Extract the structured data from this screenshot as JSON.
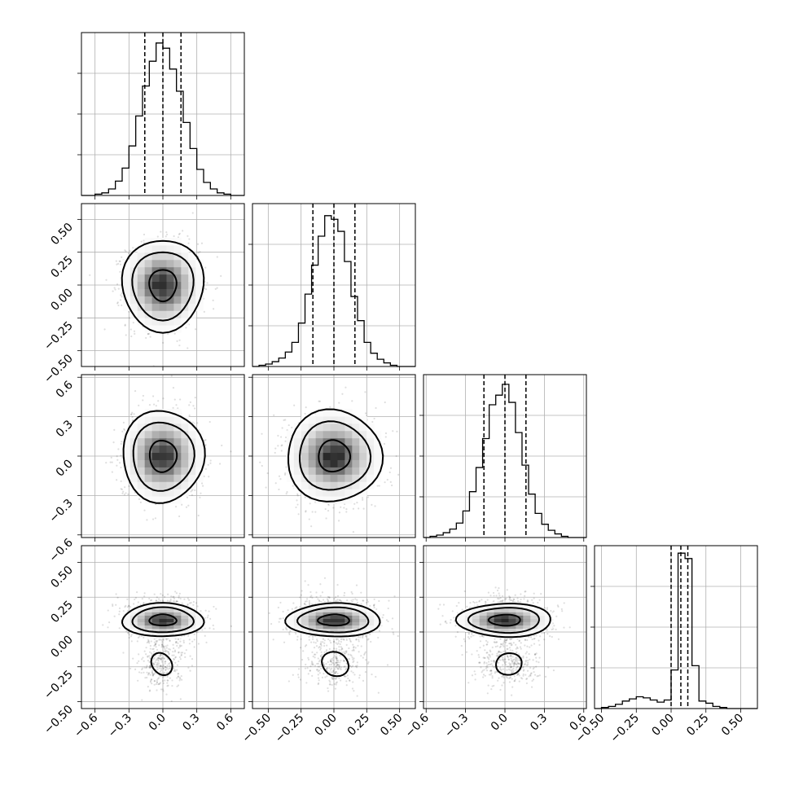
{
  "chart_data": {
    "type": "corner",
    "params": 4,
    "ranges": [
      [
        -0.72,
        0.72
      ],
      [
        -0.62,
        0.62
      ],
      [
        -0.62,
        0.62
      ],
      [
        -0.55,
        0.62
      ]
    ],
    "ticks": [
      [
        -0.6,
        -0.3,
        0.0,
        0.3,
        0.6
      ],
      [
        -0.5,
        -0.25,
        0.0,
        0.25,
        0.5
      ],
      [
        -0.6,
        -0.3,
        0.0,
        0.3,
        0.6
      ],
      [
        -0.5,
        -0.25,
        0.0,
        0.25,
        0.5
      ]
    ],
    "tick_labels": [
      [
        "−0.6",
        "−0.3",
        "0.0",
        "0.3",
        "0.6"
      ],
      [
        "−0.50",
        "−0.25",
        "0.00",
        "0.25",
        "0.50"
      ],
      [
        "−0.6",
        "−0.3",
        "0.0",
        "0.3",
        "0.6"
      ],
      [
        "−0.50",
        "−0.25",
        "0.00",
        "0.25",
        "0.50"
      ]
    ],
    "grid": true,
    "histograms": [
      {
        "edges": [
          -0.72,
          -0.66,
          -0.6,
          -0.54,
          -0.48,
          -0.42,
          -0.36,
          -0.3,
          -0.24,
          -0.18,
          -0.12,
          -0.06,
          0.0,
          0.06,
          0.12,
          0.18,
          0.24,
          0.3,
          0.36,
          0.42,
          0.48,
          0.54,
          0.6,
          0.66,
          0.72
        ],
        "counts": [
          0,
          0,
          1,
          2,
          5,
          11,
          21,
          38,
          61,
          84,
          103,
          117,
          113,
          97,
          80,
          56,
          36,
          20,
          10,
          5,
          2,
          1,
          0,
          0
        ],
        "ymax": 125,
        "quantiles": [
          -0.16,
          0.0,
          0.16
        ]
      },
      {
        "edges": [
          -0.62,
          -0.57,
          -0.52,
          -0.47,
          -0.42,
          -0.37,
          -0.32,
          -0.27,
          -0.22,
          -0.17,
          -0.12,
          -0.07,
          -0.02,
          0.03,
          0.08,
          0.13,
          0.18,
          0.23,
          0.28,
          0.33,
          0.38,
          0.43,
          0.48,
          0.53,
          0.58,
          0.62
        ],
        "counts": [
          0,
          1,
          2,
          4,
          7,
          12,
          20,
          36,
          60,
          84,
          108,
          125,
          122,
          112,
          87,
          58,
          38,
          20,
          11,
          6,
          3,
          1,
          0,
          0,
          0
        ],
        "ymax": 135,
        "quantiles": [
          -0.16,
          0.0,
          0.16
        ]
      },
      {
        "edges": [
          -0.62,
          -0.57,
          -0.52,
          -0.47,
          -0.42,
          -0.37,
          -0.32,
          -0.27,
          -0.22,
          -0.17,
          -0.12,
          -0.07,
          -0.02,
          0.03,
          0.08,
          0.13,
          0.18,
          0.23,
          0.28,
          0.33,
          0.38,
          0.43,
          0.48,
          0.53,
          0.58,
          0.62
        ],
        "counts": [
          0,
          1,
          2,
          4,
          7,
          12,
          22,
          38,
          58,
          82,
          110,
          118,
          127,
          112,
          87,
          60,
          36,
          20,
          11,
          6,
          3,
          1,
          0,
          0,
          0
        ],
        "ymax": 135,
        "quantiles": [
          -0.16,
          0.0,
          0.16
        ]
      },
      {
        "edges": [
          -0.55,
          -0.5,
          -0.45,
          -0.4,
          -0.35,
          -0.3,
          -0.25,
          -0.2,
          -0.15,
          -0.1,
          -0.05,
          0.0,
          0.05,
          0.1,
          0.15,
          0.2,
          0.25,
          0.3,
          0.35,
          0.4,
          0.45,
          0.5,
          0.55,
          0.62
        ],
        "counts": [
          0,
          1,
          2,
          4,
          7,
          9,
          11,
          10,
          8,
          6,
          8,
          36,
          145,
          140,
          40,
          7,
          5,
          2,
          1,
          0,
          0,
          0,
          0
        ],
        "ymax": 152,
        "quantiles": [
          0.0,
          0.07,
          0.12
        ]
      }
    ],
    "pairs": [
      {
        "x": 0,
        "y": 1,
        "mean": [
          0.0,
          0.0
        ],
        "sd": [
          0.16,
          0.16
        ],
        "contours": [
          [
            0.12,
            0.12
          ],
          [
            0.27,
            0.26
          ],
          [
            0.36,
            0.35
          ]
        ]
      },
      {
        "x": 0,
        "y": 2,
        "mean": [
          0.0,
          0.0
        ],
        "sd": [
          0.16,
          0.16
        ],
        "contours": [
          [
            0.12,
            0.12
          ],
          [
            0.27,
            0.26
          ],
          [
            0.36,
            0.35
          ]
        ]
      },
      {
        "x": 1,
        "y": 2,
        "mean": [
          0.0,
          0.0
        ],
        "sd": [
          0.16,
          0.16
        ],
        "contours": [
          [
            0.12,
            0.12
          ],
          [
            0.27,
            0.26
          ],
          [
            0.36,
            0.35
          ]
        ]
      },
      {
        "x": 0,
        "y": 3,
        "mean": [
          0.0,
          0.085
        ],
        "sd": [
          0.16,
          0.05
        ],
        "contours": [
          [
            0.12,
            0.04
          ],
          [
            0.27,
            0.09
          ],
          [
            0.36,
            0.12
          ]
        ],
        "blob": {
          "center": [
            -0.01,
            -0.23
          ],
          "radius": [
            0.09,
            0.08
          ]
        }
      },
      {
        "x": 1,
        "y": 3,
        "mean": [
          0.0,
          0.085
        ],
        "sd": [
          0.16,
          0.05
        ],
        "contours": [
          [
            0.12,
            0.04
          ],
          [
            0.27,
            0.09
          ],
          [
            0.36,
            0.12
          ]
        ],
        "blob": {
          "center": [
            0.01,
            -0.23
          ],
          "radius": [
            0.11,
            0.08
          ]
        }
      },
      {
        "x": 2,
        "y": 3,
        "mean": [
          0.0,
          0.085
        ],
        "sd": [
          0.16,
          0.05
        ],
        "contours": [
          [
            0.12,
            0.04
          ],
          [
            0.27,
            0.09
          ],
          [
            0.36,
            0.12
          ]
        ],
        "blob": {
          "center": [
            0.03,
            -0.23
          ],
          "radius": [
            0.11,
            0.07
          ]
        }
      }
    ]
  }
}
